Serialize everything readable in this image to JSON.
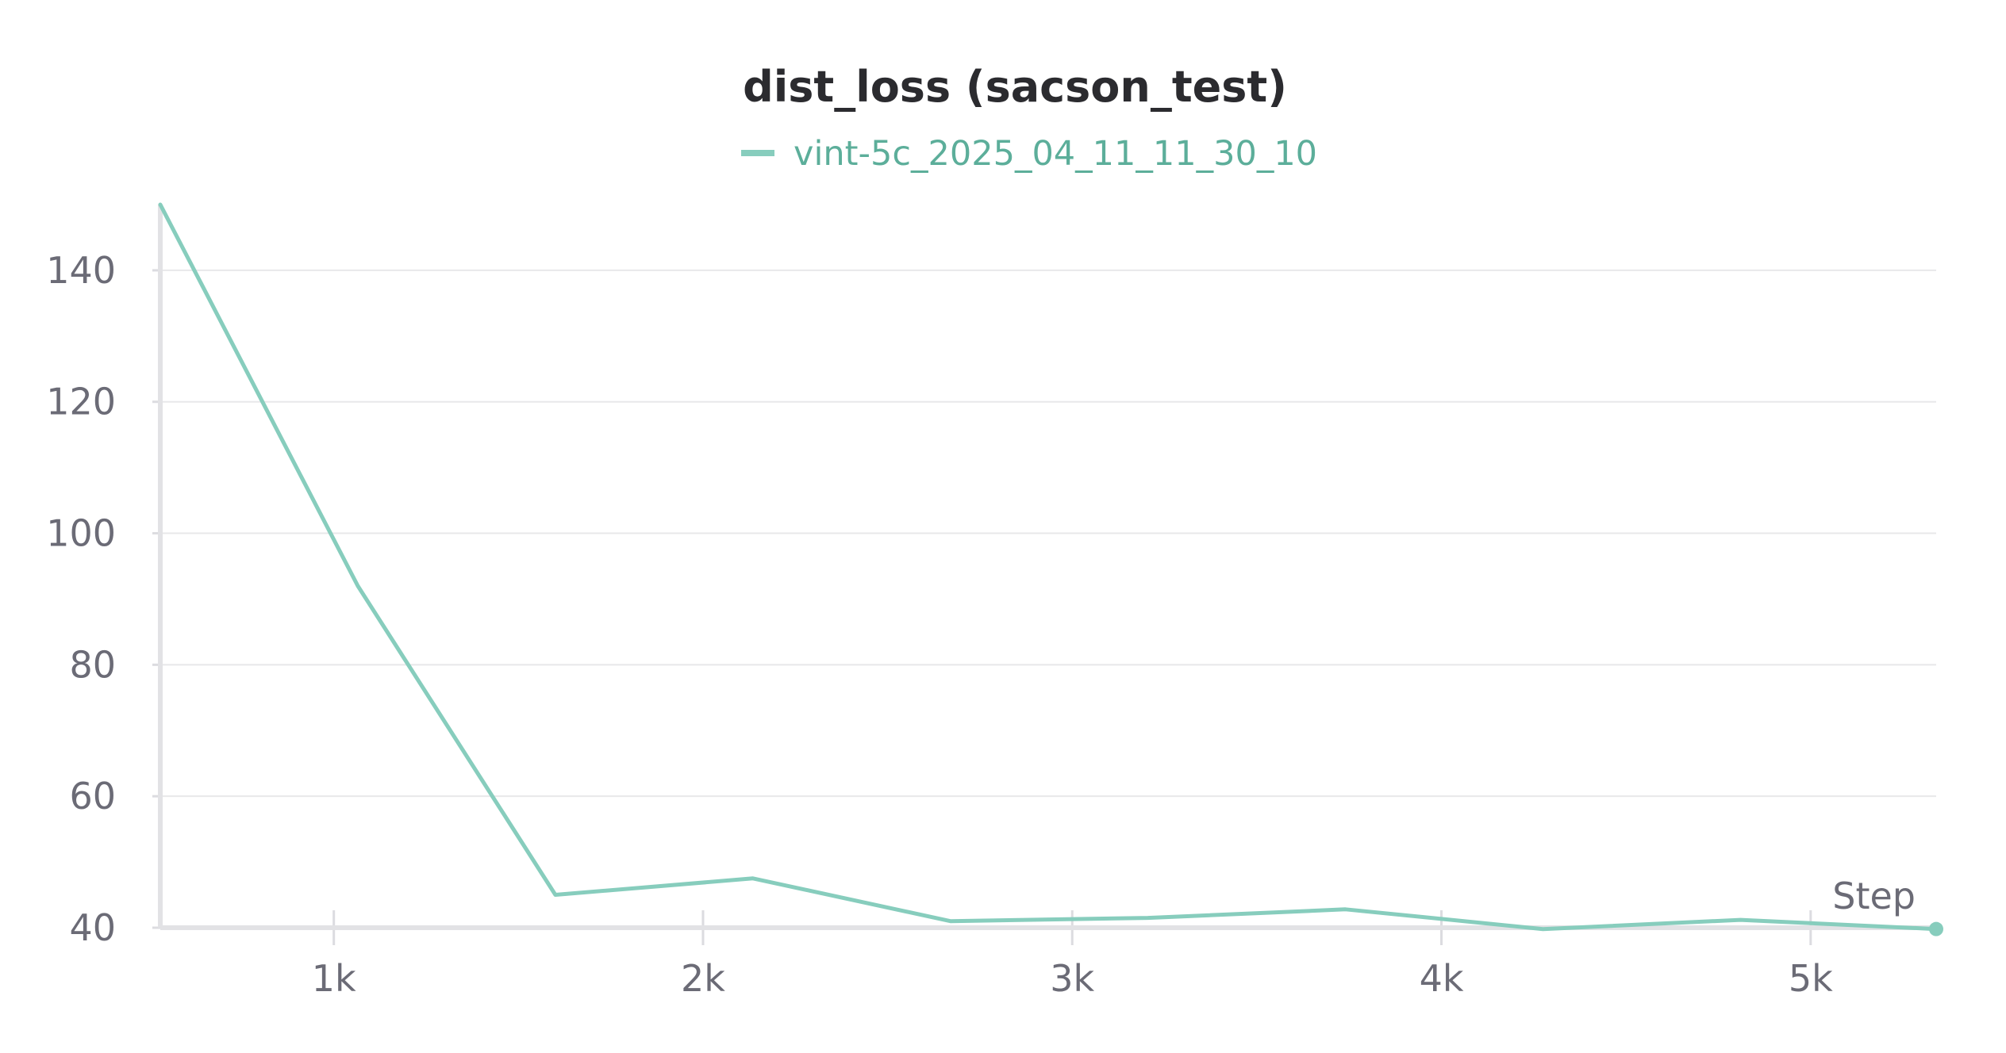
{
  "chart_data": {
    "type": "line",
    "title": "dist_loss (sacson_test)",
    "xlabel": "Step",
    "ylabel": "",
    "xlim": [
      530,
      5340
    ],
    "ylim": [
      40,
      150
    ],
    "x_ticks": [
      1000,
      2000,
      3000,
      4000,
      5000
    ],
    "x_tick_labels": [
      "1k",
      "2k",
      "3k",
      "4k",
      "5k"
    ],
    "y_ticks": [
      40,
      60,
      80,
      100,
      120,
      140
    ],
    "y_tick_labels": [
      "40",
      "60",
      "80",
      "100",
      "120",
      "140"
    ],
    "grid": "horizontal",
    "legend_position": "top-center",
    "series": [
      {
        "name": "vint-5c_2025_04_11_11_30_10",
        "color": "#87cdbd",
        "legend_text_color": "#5cae9a",
        "x": [
          530,
          1065,
          1600,
          2135,
          2670,
          3205,
          3740,
          4275,
          4810,
          5340
        ],
        "y": [
          150,
          92,
          45,
          47.5,
          41,
          41.5,
          42.8,
          39.8,
          41.2,
          39.8
        ]
      }
    ]
  }
}
